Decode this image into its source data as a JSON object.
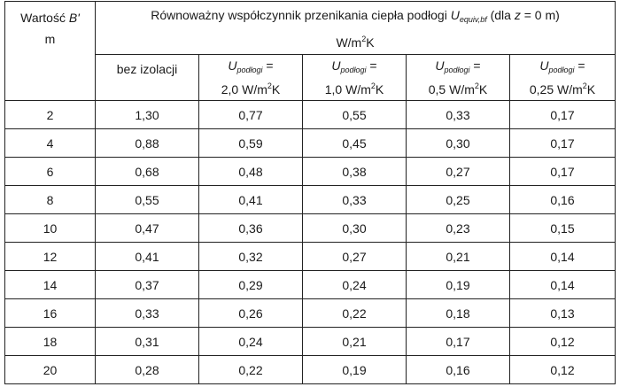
{
  "header": {
    "col_b_line1": "Wartość ",
    "col_b_var": "B'",
    "col_b_line2": "m",
    "main_pre": "Równoważny współczynnik przenikania ciepła podłogi ",
    "main_var": "U",
    "main_sub": "equiv,bf",
    "main_post": " (dla ",
    "main_z": "z",
    "main_post2": " = 0 m)",
    "main_unit": "W/m",
    "main_unit_sup": "2",
    "main_unit_end": "K",
    "sub_cols": [
      {
        "label": "bez izolacji"
      },
      {
        "var": "U",
        "sub": "podłogi",
        "eq": " =",
        "value": "2,0 W/m",
        "sup": "2",
        "end": "K"
      },
      {
        "var": "U",
        "sub": "podłogi",
        "eq": " =",
        "value": "1,0 W/m",
        "sup": "2",
        "end": "K"
      },
      {
        "var": "U",
        "sub": "podłogi",
        "eq": " =",
        "value": "0,5 W/m",
        "sup": "2",
        "end": "K"
      },
      {
        "var": "U",
        "sub": "podłogi",
        "eq": " =",
        "value": "0,25 W/m",
        "sup": "2",
        "end": "K"
      }
    ]
  },
  "rows": [
    [
      "2",
      "1,30",
      "0,77",
      "0,55",
      "0,33",
      "0,17"
    ],
    [
      "4",
      "0,88",
      "0,59",
      "0,45",
      "0,30",
      "0,17"
    ],
    [
      "6",
      "0,68",
      "0,48",
      "0,38",
      "0,27",
      "0,17"
    ],
    [
      "8",
      "0,55",
      "0,41",
      "0,33",
      "0,25",
      "0,16"
    ],
    [
      "10",
      "0,47",
      "0,36",
      "0,30",
      "0,23",
      "0,15"
    ],
    [
      "12",
      "0,41",
      "0,32",
      "0,27",
      "0,21",
      "0,14"
    ],
    [
      "14",
      "0,37",
      "0,29",
      "0,24",
      "0,19",
      "0,14"
    ],
    [
      "16",
      "0,33",
      "0,26",
      "0,22",
      "0,18",
      "0,13"
    ],
    [
      "18",
      "0,31",
      "0,24",
      "0,21",
      "0,17",
      "0,12"
    ],
    [
      "20",
      "0,28",
      "0,22",
      "0,19",
      "0,16",
      "0,12"
    ]
  ]
}
